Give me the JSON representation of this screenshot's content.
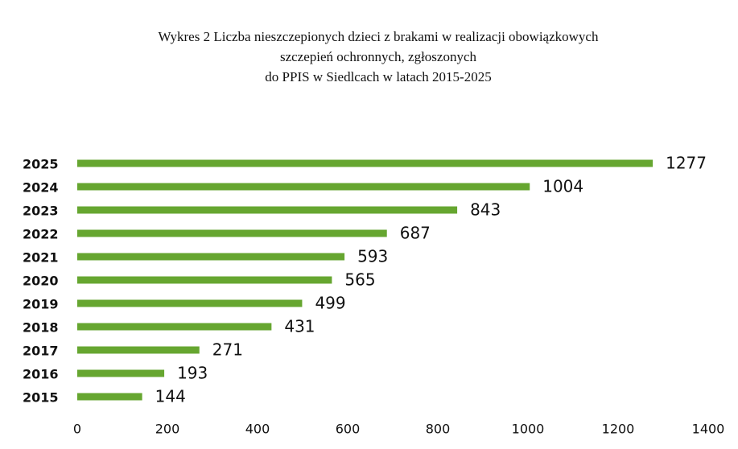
{
  "chart_data": {
    "type": "bar",
    "orientation": "horizontal",
    "title": [
      "Wykres 2 Liczba nieszczepionych dzieci z brakami w realizacji obowiązkowych",
      "szczepień ochronnych, zgłoszonych",
      "do PPIS w Siedlcach w latach 2015-2025"
    ],
    "categories": [
      "2025",
      "2024",
      "2023",
      "2022",
      "2021",
      "2020",
      "2019",
      "2018",
      "2017",
      "2016",
      "2015"
    ],
    "values": [
      1277,
      1004,
      843,
      687,
      593,
      565,
      499,
      431,
      271,
      193,
      144
    ],
    "color": "#66a630",
    "xlim": [
      0,
      1400
    ],
    "xticks": [
      0,
      200,
      400,
      600,
      800,
      1000,
      1200,
      1400
    ],
    "grid": false
  }
}
